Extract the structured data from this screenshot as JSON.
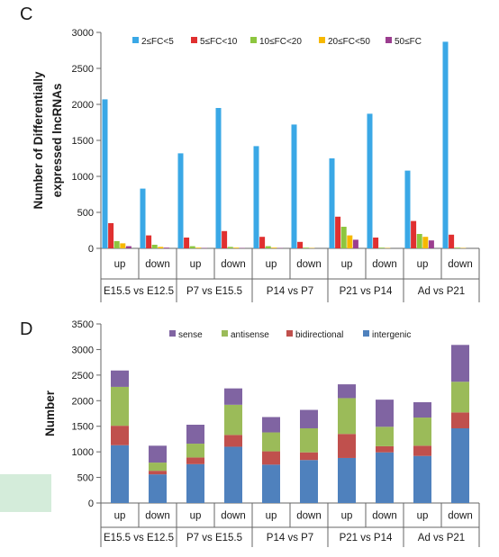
{
  "panels": [
    {
      "panel_label": "C",
      "ylabel_lines": [
        "Number of Differentially",
        "expressed lncRNAs"
      ],
      "yticks": [
        0,
        500,
        1000,
        1500,
        2000,
        2500,
        3000
      ],
      "legend": [
        {
          "label": "2≤FC<5",
          "color": "#3aa8e6"
        },
        {
          "label": "5≤FC<10",
          "color": "#e03030"
        },
        {
          "label": "10≤FC<20",
          "color": "#8dc63f"
        },
        {
          "label": "20≤FC<50",
          "color": "#f6b800"
        },
        {
          "label": "50≤FC",
          "color": "#9b3d8f"
        }
      ]
    },
    {
      "panel_label": "D",
      "ylabel_lines": [
        "Number"
      ],
      "yticks": [
        0,
        500,
        1000,
        1500,
        2000,
        2500,
        3000,
        3500
      ],
      "legend": [
        {
          "label": "sense",
          "color": "#8064a2"
        },
        {
          "label": "antisense",
          "color": "#9bbb59"
        },
        {
          "label": "bidirectional",
          "color": "#c0504d"
        },
        {
          "label": "intergenic",
          "color": "#4f81bd"
        }
      ]
    }
  ],
  "chart_data": [
    {
      "type": "bar",
      "mode": "grouped",
      "title": "",
      "ylabel": "Number of Differentially expressed lncRNAs",
      "ylim": [
        0,
        3000
      ],
      "categories": [
        "up",
        "down",
        "up",
        "down",
        "up",
        "down",
        "up",
        "down",
        "up",
        "down"
      ],
      "groups": [
        "E15.5 vs E12.5",
        "P7 vs E15.5",
        "P14 vs P7",
        "P21 vs P14",
        "Ad vs P21"
      ],
      "series": [
        {
          "name": "2≤FC<5",
          "color": "#3aa8e6",
          "values": [
            2070,
            830,
            1320,
            1950,
            1420,
            1720,
            1250,
            1870,
            1080,
            2870
          ]
        },
        {
          "name": "5≤FC<10",
          "color": "#e03030",
          "values": [
            350,
            180,
            150,
            240,
            160,
            90,
            440,
            150,
            380,
            190
          ]
        },
        {
          "name": "10≤FC<20",
          "color": "#8dc63f",
          "values": [
            100,
            50,
            30,
            20,
            30,
            10,
            300,
            10,
            200,
            10
          ]
        },
        {
          "name": "20≤FC<50",
          "color": "#f6b800",
          "values": [
            70,
            20,
            10,
            10,
            10,
            5,
            180,
            5,
            160,
            5
          ]
        },
        {
          "name": "50≤FC",
          "color": "#9b3d8f",
          "values": [
            30,
            10,
            5,
            5,
            5,
            0,
            120,
            0,
            110,
            0
          ]
        }
      ]
    },
    {
      "type": "bar",
      "mode": "stacked",
      "title": "",
      "ylabel": "Number",
      "ylim": [
        0,
        3500
      ],
      "categories": [
        "up",
        "down",
        "up",
        "down",
        "up",
        "down",
        "up",
        "down",
        "up",
        "down"
      ],
      "groups": [
        "E15.5 vs E12.5",
        "P7 vs E15.5",
        "P14 vs P7",
        "P21 vs P14",
        "Ad vs P21"
      ],
      "series": [
        {
          "name": "intergenic",
          "color": "#4f81bd",
          "values": [
            1130,
            560,
            760,
            1100,
            750,
            840,
            880,
            990,
            920,
            1460
          ]
        },
        {
          "name": "bidirectional",
          "color": "#c0504d",
          "values": [
            380,
            70,
            130,
            230,
            260,
            150,
            470,
            120,
            200,
            310
          ]
        },
        {
          "name": "antisense",
          "color": "#9bbb59",
          "values": [
            760,
            160,
            270,
            590,
            370,
            470,
            700,
            380,
            550,
            600
          ]
        },
        {
          "name": "sense",
          "color": "#8064a2",
          "values": [
            320,
            330,
            370,
            320,
            300,
            360,
            270,
            530,
            300,
            720
          ]
        }
      ]
    }
  ]
}
